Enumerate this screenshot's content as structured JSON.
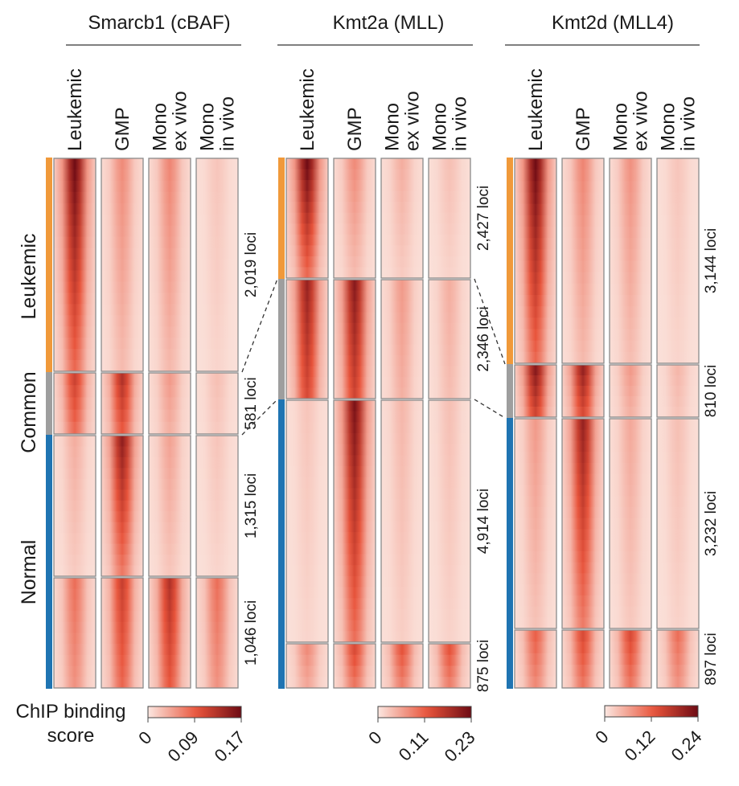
{
  "figure_label": "ChIP binding score heatmaps",
  "group_labels": [
    {
      "id": "leukemic",
      "label": "Leukemic",
      "color": "#f0993a"
    },
    {
      "id": "common",
      "label": "Common",
      "color": "#9e9e9e"
    },
    {
      "id": "normal",
      "label": "Normal",
      "color": "#1f74b2"
    }
  ],
  "column_labels": [
    [
      "Leukemic"
    ],
    [
      "GMP"
    ],
    [
      "Mono",
      "ex vivo"
    ],
    [
      "Mono",
      "in vivo"
    ]
  ],
  "colorscale": {
    "title_line1": "ChIP binding",
    "title_line2": "score",
    "low_color": "#fdf3ee",
    "mid_color": "#e8533a",
    "high_color": "#6e0b14"
  },
  "chart_data": [
    {
      "type": "heatmap",
      "title": "Smarcb1 (cBAF)",
      "columns": [
        "Leukemic",
        "GMP",
        "Mono ex vivo",
        "Mono in vivo"
      ],
      "colorbar": {
        "min": 0,
        "max": 0.17,
        "ticks": [
          "0",
          "0.09",
          "0.17"
        ]
      },
      "clusters": [
        {
          "group": "leukemic",
          "loci": 2019,
          "label": "2,019 loci",
          "intensity": [
            0.95,
            0.3,
            0.32,
            0.1
          ]
        },
        {
          "group": "common",
          "loci": 581,
          "label": "581 loci",
          "intensity": [
            0.6,
            0.7,
            0.25,
            0.12
          ]
        },
        {
          "group": "normal",
          "loci": 1315,
          "label": "1,315 loci",
          "intensity": [
            0.18,
            0.82,
            0.22,
            0.1
          ]
        },
        {
          "group": "normal",
          "loci": 1046,
          "label": "1,046 loci",
          "intensity": [
            0.4,
            0.62,
            0.7,
            0.4
          ]
        }
      ]
    },
    {
      "type": "heatmap",
      "title": "Kmt2a (MLL)",
      "columns": [
        "Leukemic",
        "GMP",
        "Mono ex vivo",
        "Mono in vivo"
      ],
      "colorbar": {
        "min": 0,
        "max": 0.23,
        "ticks": [
          "0",
          "0.11",
          "0.23"
        ]
      },
      "clusters": [
        {
          "group": "leukemic",
          "loci": 2427,
          "label": "2,427 loci",
          "intensity": [
            0.95,
            0.3,
            0.18,
            0.12
          ]
        },
        {
          "group": "common",
          "loci": 2346,
          "label": "2,346 loci",
          "intensity": [
            0.8,
            0.85,
            0.25,
            0.18
          ]
        },
        {
          "group": "normal",
          "loci": 4914,
          "label": "4,914 loci",
          "intensity": [
            0.1,
            0.9,
            0.15,
            0.12
          ]
        },
        {
          "group": "normal",
          "loci": 875,
          "label": "875 loci",
          "intensity": [
            0.3,
            0.55,
            0.5,
            0.5
          ]
        }
      ]
    },
    {
      "type": "heatmap",
      "title": "Kmt2d (MLL4)",
      "columns": [
        "Leukemic",
        "GMP",
        "Mono ex vivo",
        "Mono in vivo"
      ],
      "colorbar": {
        "min": 0,
        "max": 0.24,
        "ticks": [
          "0",
          "0.12",
          "0.24"
        ]
      },
      "clusters": [
        {
          "group": "leukemic",
          "loci": 3144,
          "label": "3,144 loci",
          "intensity": [
            0.95,
            0.32,
            0.28,
            0.1
          ]
        },
        {
          "group": "common",
          "loci": 810,
          "label": "810 loci",
          "intensity": [
            0.85,
            0.8,
            0.25,
            0.15
          ]
        },
        {
          "group": "normal",
          "loci": 3232,
          "label": "3,232 loci",
          "intensity": [
            0.25,
            0.8,
            0.2,
            0.12
          ]
        },
        {
          "group": "normal",
          "loci": 897,
          "label": "897 loci",
          "intensity": [
            0.45,
            0.55,
            0.55,
            0.4
          ]
        }
      ]
    }
  ]
}
